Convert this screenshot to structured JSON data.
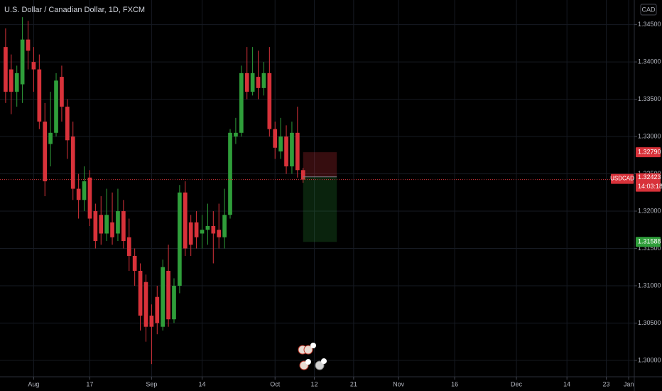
{
  "chart_data": {
    "type": "candlestick",
    "title": "U.S. Dollar / Canadian Dollar, 1D, FXCM",
    "currency": "CAD",
    "up_color": "#2f9e3a",
    "down_color": "#d8323a",
    "grid": true,
    "x": [
      0,
      1,
      2,
      3,
      4,
      5,
      6,
      7,
      8,
      9,
      10,
      11,
      12,
      13,
      14,
      15,
      16,
      17,
      18,
      19,
      20,
      21,
      22,
      23,
      24,
      25,
      26,
      27,
      28,
      29,
      30,
      31,
      32,
      33,
      34,
      35,
      36,
      37,
      38,
      39,
      40,
      41,
      42,
      43,
      44,
      45,
      46,
      47,
      48,
      49,
      50,
      51,
      52,
      53
    ],
    "open": [
      1.342,
      1.339,
      1.336,
      1.337,
      1.343,
      1.34,
      1.339,
      1.332,
      1.329,
      1.3305,
      1.338,
      1.334,
      1.33,
      1.323,
      1.3215,
      1.3245,
      1.32,
      1.3195,
      1.317,
      1.3185,
      1.317,
      1.32,
      1.3165,
      1.314,
      1.312,
      1.3105,
      1.306,
      1.3085,
      1.3045,
      1.312,
      1.3055,
      1.31,
      1.3225,
      1.3185,
      1.3185,
      1.317,
      1.3175,
      1.318,
      1.3175,
      1.3165,
      1.3195,
      1.33,
      1.3305,
      1.3385,
      1.336,
      1.338,
      1.3365,
      1.3385,
      1.331,
      1.328,
      1.33,
      1.326,
      1.3305,
      1.3255
    ],
    "high": [
      1.3445,
      1.341,
      1.3395,
      1.346,
      1.3455,
      1.342,
      1.341,
      1.3345,
      1.336,
      1.3385,
      1.3395,
      1.335,
      1.332,
      1.325,
      1.326,
      1.3255,
      1.321,
      1.322,
      1.323,
      1.3225,
      1.323,
      1.3215,
      1.319,
      1.315,
      1.313,
      1.3115,
      1.3075,
      1.31,
      1.3135,
      1.3155,
      1.311,
      1.3235,
      1.324,
      1.3195,
      1.32,
      1.3195,
      1.321,
      1.32,
      1.321,
      1.323,
      1.331,
      1.3325,
      1.3395,
      1.342,
      1.342,
      1.3415,
      1.34,
      1.342,
      1.332,
      1.3325,
      1.3315,
      1.332,
      1.334,
      1.3258
    ],
    "low": [
      1.3345,
      1.333,
      1.334,
      1.3345,
      1.339,
      1.336,
      1.331,
      1.322,
      1.326,
      1.33,
      1.332,
      1.327,
      1.3215,
      1.319,
      1.32,
      1.318,
      1.315,
      1.3155,
      1.316,
      1.3155,
      1.316,
      1.315,
      1.312,
      1.31,
      1.304,
      1.3025,
      1.2995,
      1.3035,
      1.304,
      1.3045,
      1.305,
      1.309,
      1.314,
      1.314,
      1.315,
      1.315,
      1.3155,
      1.313,
      1.315,
      1.315,
      1.319,
      1.329,
      1.33,
      1.335,
      1.3355,
      1.335,
      1.3355,
      1.33,
      1.327,
      1.327,
      1.325,
      1.325,
      1.3245,
      1.3238
    ],
    "close": [
      1.336,
      1.336,
      1.3385,
      1.343,
      1.3415,
      1.339,
      1.332,
      1.324,
      1.3305,
      1.3375,
      1.334,
      1.3295,
      1.323,
      1.3215,
      1.324,
      1.319,
      1.316,
      1.317,
      1.3195,
      1.3165,
      1.32,
      1.316,
      1.314,
      1.312,
      1.306,
      1.3045,
      1.3045,
      1.305,
      1.3125,
      1.3055,
      1.31,
      1.3225,
      1.315,
      1.3155,
      1.3165,
      1.3175,
      1.318,
      1.317,
      1.3165,
      1.3195,
      1.3305,
      1.3305,
      1.3385,
      1.336,
      1.3385,
      1.3365,
      1.3385,
      1.331,
      1.3285,
      1.33,
      1.326,
      1.3305,
      1.3255,
      1.32423
    ],
    "xlim": [
      -1,
      112
    ],
    "xticks": [
      {
        "value": 5,
        "label": "Aug"
      },
      {
        "value": 15,
        "label": "17"
      },
      {
        "value": 26,
        "label": "Sep"
      },
      {
        "value": 35,
        "label": "14"
      },
      {
        "value": 48,
        "label": "Oct"
      },
      {
        "value": 55,
        "label": "12"
      },
      {
        "value": 62,
        "label": "21"
      },
      {
        "value": 70,
        "label": "Nov"
      },
      {
        "value": 80,
        "label": "16"
      },
      {
        "value": 91,
        "label": "Dec"
      },
      {
        "value": 100,
        "label": "14"
      },
      {
        "value": 107,
        "label": "23"
      },
      {
        "value": 111,
        "label": "Jan"
      }
    ],
    "ylim": [
      1.2978,
      1.3483
    ],
    "yticks": [
      {
        "value": 1.345,
        "label": "1.34500"
      },
      {
        "value": 1.34,
        "label": "1.34000"
      },
      {
        "value": 1.335,
        "label": "1.33500"
      },
      {
        "value": 1.33,
        "label": "1.33000"
      },
      {
        "value": 1.325,
        "label": "1.32500"
      },
      {
        "value": 1.32,
        "label": "1.32000"
      },
      {
        "value": 1.315,
        "label": "1.31500"
      },
      {
        "value": 1.31,
        "label": "1.31000"
      },
      {
        "value": 1.305,
        "label": "1.30500"
      },
      {
        "value": 1.3,
        "label": "1.30000"
      }
    ],
    "position": {
      "x": [
        53,
        59
      ],
      "entry": 1.3246,
      "stop": {
        "value": 1.3279,
        "label": "1.32790"
      },
      "target": 1.31588
    },
    "last_price": {
      "symbol": "USDCAD",
      "value": 1.32423,
      "countdown": "14:03:18"
    }
  }
}
